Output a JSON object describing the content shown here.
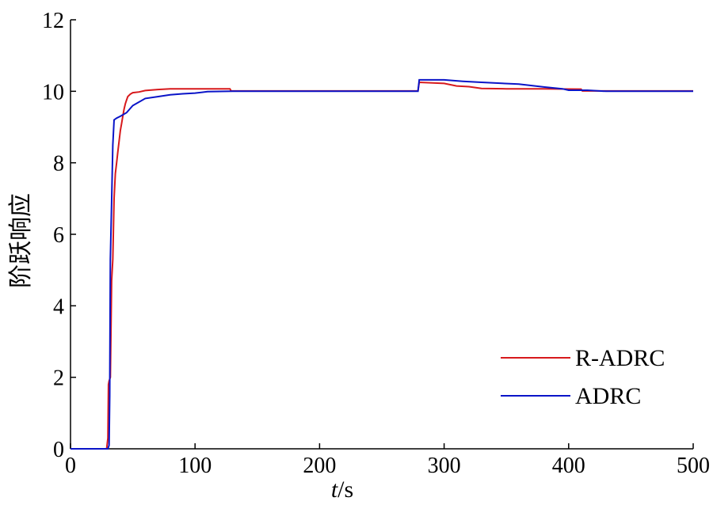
{
  "chart_data": {
    "type": "line",
    "xlabel": {
      "italic": "t",
      "rest": "/s"
    },
    "ylabel": "阶跃响应",
    "xlim": [
      0,
      500
    ],
    "ylim": [
      0,
      12
    ],
    "xticks": [
      0,
      100,
      200,
      300,
      400,
      500
    ],
    "yticks": [
      0,
      2,
      4,
      6,
      8,
      10,
      12
    ],
    "grid": false,
    "legend_position": "bottom-right",
    "series": [
      {
        "name": "R-ADRC",
        "color": "#d7191c",
        "points": [
          [
            0,
            0
          ],
          [
            29,
            0
          ],
          [
            30,
            0.3
          ],
          [
            30.5,
            1.8
          ],
          [
            31,
            1.9
          ],
          [
            32,
            2.0
          ],
          [
            33,
            4.7
          ],
          [
            34,
            5.3
          ],
          [
            35,
            7.0
          ],
          [
            36,
            7.7
          ],
          [
            37,
            8.0
          ],
          [
            38,
            8.3
          ],
          [
            39,
            8.6
          ],
          [
            40,
            8.9
          ],
          [
            41,
            9.1
          ],
          [
            42,
            9.3
          ],
          [
            43,
            9.5
          ],
          [
            44,
            9.65
          ],
          [
            45,
            9.75
          ],
          [
            46,
            9.85
          ],
          [
            48,
            9.92
          ],
          [
            50,
            9.96
          ],
          [
            55,
            9.98
          ],
          [
            60,
            10.02
          ],
          [
            70,
            10.05
          ],
          [
            80,
            10.07
          ],
          [
            100,
            10.07
          ],
          [
            128,
            10.07
          ],
          [
            129,
            10.01
          ],
          [
            200,
            10.01
          ],
          [
            279,
            10.01
          ],
          [
            280,
            10.25
          ],
          [
            300,
            10.22
          ],
          [
            310,
            10.15
          ],
          [
            320,
            10.13
          ],
          [
            330,
            10.08
          ],
          [
            350,
            10.07
          ],
          [
            380,
            10.07
          ],
          [
            410,
            10.06
          ],
          [
            411,
            10.01
          ],
          [
            500,
            10.01
          ]
        ]
      },
      {
        "name": "ADRC",
        "color": "#0a14c8",
        "points": [
          [
            0,
            0
          ],
          [
            30,
            0
          ],
          [
            31,
            0.1
          ],
          [
            31.5,
            1.5
          ],
          [
            32,
            5.3
          ],
          [
            33,
            6.9
          ],
          [
            34,
            8.5
          ],
          [
            35,
            9.2
          ],
          [
            37,
            9.25
          ],
          [
            40,
            9.3
          ],
          [
            45,
            9.4
          ],
          [
            50,
            9.6
          ],
          [
            55,
            9.7
          ],
          [
            60,
            9.8
          ],
          [
            70,
            9.85
          ],
          [
            80,
            9.9
          ],
          [
            90,
            9.93
          ],
          [
            100,
            9.95
          ],
          [
            110,
            9.99
          ],
          [
            130,
            10.0
          ],
          [
            200,
            10.0
          ],
          [
            279,
            10.0
          ],
          [
            280,
            10.32
          ],
          [
            300,
            10.32
          ],
          [
            315,
            10.28
          ],
          [
            330,
            10.25
          ],
          [
            360,
            10.2
          ],
          [
            380,
            10.12
          ],
          [
            395,
            10.07
          ],
          [
            400,
            10.03
          ],
          [
            415,
            10.03
          ],
          [
            430,
            10.0
          ],
          [
            500,
            10.0
          ]
        ]
      }
    ]
  }
}
